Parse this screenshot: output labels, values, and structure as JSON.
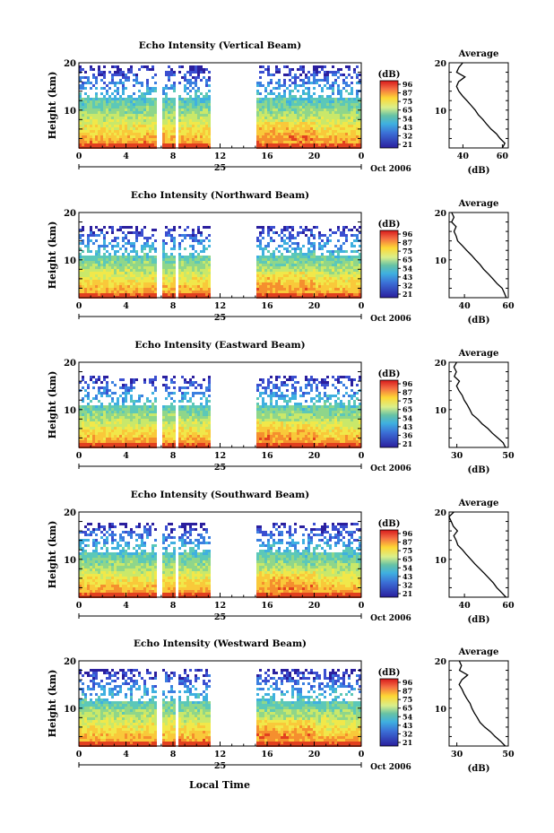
{
  "figure": {
    "bottom_xlabel": "Local Time",
    "day_label": "25",
    "month_label": "Oct 2006"
  },
  "chart_data": [
    {
      "type": "heatmap",
      "title": "Echo Intensity (Vertical Beam)",
      "ylabel": "Height (km)",
      "xlabel": "Local Time",
      "xlim": [
        0,
        24
      ],
      "ylim": [
        2,
        20
      ],
      "xticks": [
        "0",
        "4",
        "8",
        "12",
        "16",
        "20",
        "0"
      ],
      "yticks": [
        "10",
        "20"
      ],
      "data_gaps_hours": [
        [
          6.5,
          6.9
        ],
        [
          8.1,
          8.4
        ],
        [
          11.1,
          15.0
        ]
      ],
      "top_height_km": 19.5,
      "colorbar": {
        "label": "(dB)",
        "ticks": [
          "96",
          "87",
          "75",
          "65",
          "54",
          "43",
          "32",
          "21"
        ]
      },
      "profile": {
        "title": "Average",
        "xlabel": "(dB)",
        "xticks": [
          "40",
          "60"
        ],
        "xlim": [
          33,
          63
        ],
        "yticks": [
          "10",
          "20"
        ],
        "heights": [
          2,
          3,
          4,
          5,
          6,
          7,
          8,
          9,
          10,
          11,
          12,
          13,
          14,
          15,
          16,
          17,
          18,
          19,
          20
        ],
        "values": [
          60,
          61,
          59,
          57,
          54,
          52,
          50,
          48,
          46,
          44,
          42,
          40,
          38,
          37,
          38,
          41,
          37,
          38,
          40
        ]
      }
    },
    {
      "type": "heatmap",
      "title": "Echo Intensity (Northward Beam)",
      "ylabel": "Height (km)",
      "xlabel": "Local Time",
      "xlim": [
        0,
        24
      ],
      "ylim": [
        2,
        20
      ],
      "xticks": [
        "0",
        "4",
        "8",
        "12",
        "16",
        "20",
        "0"
      ],
      "yticks": [
        "10",
        "20"
      ],
      "data_gaps_hours": [
        [
          6.6,
          6.9
        ],
        [
          8.1,
          8.4
        ],
        [
          11.1,
          15.0
        ]
      ],
      "top_height_km": 17.5,
      "colorbar": {
        "label": "(dB)",
        "ticks": [
          "96",
          "87",
          "75",
          "65",
          "54",
          "43",
          "32",
          "21"
        ]
      },
      "profile": {
        "title": "Average",
        "xlabel": "(dB)",
        "xticks": [
          "40",
          "60"
        ],
        "xlim": [
          33,
          60
        ],
        "yticks": [
          "10",
          "20"
        ],
        "heights": [
          2,
          3,
          4,
          5,
          6,
          7,
          8,
          9,
          10,
          11,
          12,
          13,
          14,
          15,
          16,
          17,
          18,
          19,
          20
        ],
        "values": [
          59,
          58,
          57,
          55,
          53,
          51,
          49,
          47,
          45,
          43,
          41,
          39,
          37,
          36,
          35,
          36,
          34,
          35,
          34
        ]
      }
    },
    {
      "type": "heatmap",
      "title": "Echo Intensity (Eastward Beam)",
      "ylabel": "Height (km)",
      "xlabel": "Local Time",
      "xlim": [
        0,
        24
      ],
      "ylim": [
        2,
        20
      ],
      "xticks": [
        "0",
        "4",
        "8",
        "12",
        "16",
        "20",
        "0"
      ],
      "yticks": [
        "10",
        "20"
      ],
      "data_gaps_hours": [
        [
          6.6,
          6.9
        ],
        [
          8.1,
          8.4
        ],
        [
          11.1,
          15.0
        ]
      ],
      "top_height_km": 17.5,
      "colorbar": {
        "label": "(dB)",
        "ticks": [
          "96",
          "87",
          "75",
          "65",
          "54",
          "43",
          "36",
          "21"
        ]
      },
      "profile": {
        "title": "Average",
        "xlabel": "(dB)",
        "xticks": [
          "30",
          "50"
        ],
        "xlim": [
          27,
          50
        ],
        "yticks": [
          "10",
          "20"
        ],
        "heights": [
          2,
          3,
          4,
          5,
          6,
          7,
          8,
          9,
          10,
          11,
          12,
          13,
          14,
          15,
          16,
          17,
          18,
          19,
          20
        ],
        "values": [
          49,
          48,
          46,
          44,
          42,
          40,
          38,
          36,
          35,
          34,
          33,
          32,
          31,
          30,
          31,
          29,
          30,
          29,
          30
        ]
      }
    },
    {
      "type": "heatmap",
      "title": "Echo Intensity (Southward Beam)",
      "ylabel": "Height (km)",
      "xlabel": "Local Time",
      "xlim": [
        0,
        24
      ],
      "ylim": [
        2,
        20
      ],
      "xticks": [
        "0",
        "4",
        "8",
        "12",
        "16",
        "20",
        "0"
      ],
      "yticks": [
        "10",
        "20"
      ],
      "data_gaps_hours": [
        [
          6.6,
          6.9
        ],
        [
          8.1,
          8.4
        ],
        [
          11.1,
          15.0
        ]
      ],
      "top_height_km": 18.0,
      "colorbar": {
        "label": "(dB)",
        "ticks": [
          "96",
          "87",
          "75",
          "65",
          "54",
          "43",
          "32",
          "21"
        ]
      },
      "profile": {
        "title": "Average",
        "xlabel": "(dB)",
        "xticks": [
          "40",
          "60"
        ],
        "xlim": [
          33,
          60
        ],
        "yticks": [
          "10",
          "20"
        ],
        "heights": [
          2,
          3,
          4,
          5,
          6,
          7,
          8,
          9,
          10,
          11,
          12,
          13,
          14,
          15,
          16,
          17,
          18,
          19,
          20
        ],
        "values": [
          59,
          57,
          55,
          53,
          51,
          49,
          47,
          45,
          43,
          41,
          39,
          37,
          36,
          35,
          37,
          35,
          34,
          33,
          35
        ]
      }
    },
    {
      "type": "heatmap",
      "title": "Echo Intensity (Westward Beam)",
      "ylabel": "Height (km)",
      "xlabel": "Local Time",
      "xlim": [
        0,
        24
      ],
      "ylim": [
        2,
        20
      ],
      "xticks": [
        "0",
        "4",
        "8",
        "12",
        "16",
        "20",
        "0"
      ],
      "yticks": [
        "10",
        "20"
      ],
      "data_gaps_hours": [
        [
          6.6,
          6.9
        ],
        [
          8.1,
          8.4
        ],
        [
          11.1,
          15.0
        ]
      ],
      "top_height_km": 18.5,
      "colorbar": {
        "label": "(dB)",
        "ticks": [
          "96",
          "87",
          "75",
          "65",
          "54",
          "43",
          "32",
          "21"
        ]
      },
      "profile": {
        "title": "Average",
        "xlabel": "(dB)",
        "xticks": [
          "30",
          "50"
        ],
        "xlim": [
          27,
          50
        ],
        "yticks": [
          "10",
          "20"
        ],
        "heights": [
          2,
          3,
          4,
          5,
          6,
          7,
          8,
          9,
          10,
          11,
          12,
          13,
          14,
          15,
          16,
          17,
          18,
          19,
          20
        ],
        "values": [
          49,
          47,
          45,
          43,
          41,
          39,
          38,
          37,
          36,
          35,
          34,
          33,
          32,
          31,
          32,
          34,
          31,
          32,
          31
        ]
      }
    }
  ]
}
